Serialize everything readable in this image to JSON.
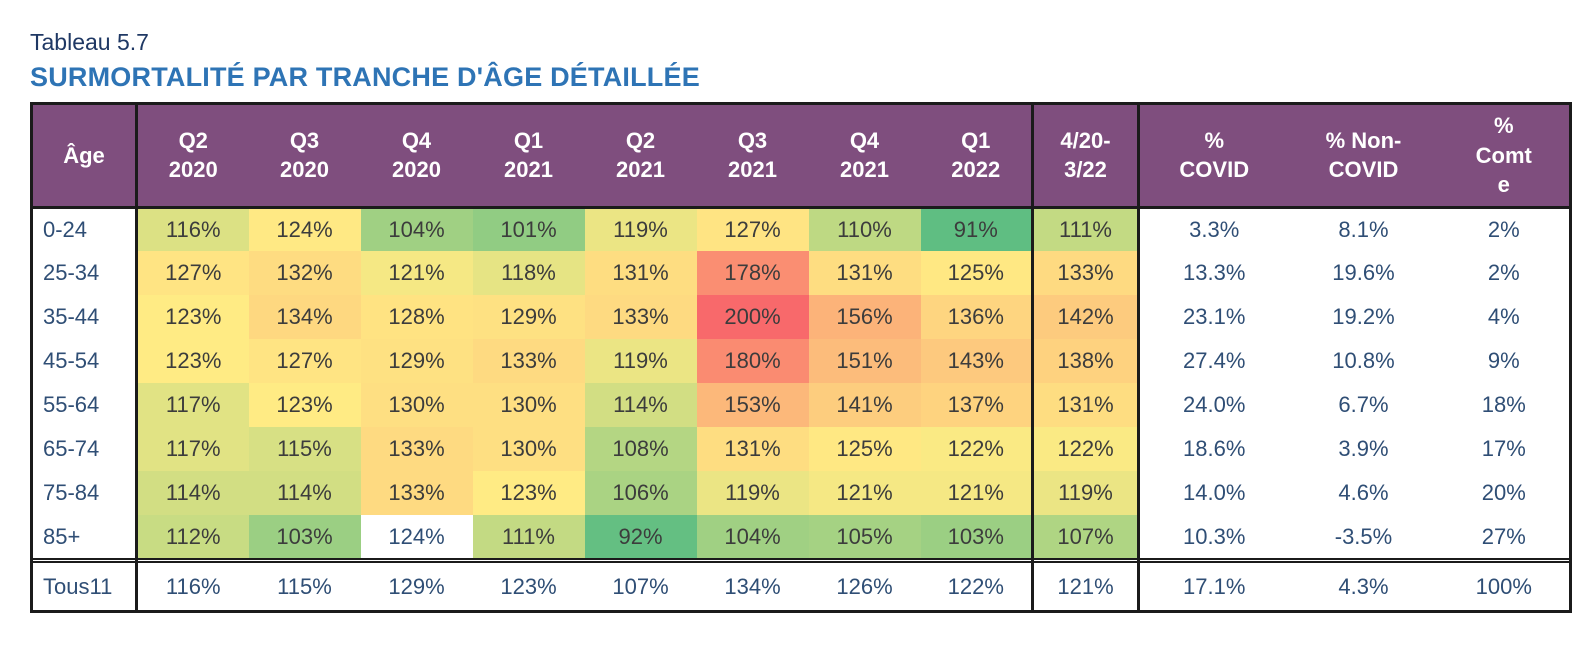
{
  "page": {
    "label": "Tableau 5.7",
    "title": "SURMORTALITÉ PAR TRANCHE D'ÂGE DÉTAILLÉE"
  },
  "colors": {
    "header_bg": "#7F4E7E",
    "header_text": "#FFFFFF",
    "label_color": "#1F3864",
    "title_color": "#2E74B5",
    "row_text": "#2F4E75",
    "heat_text": "#3C3C3C",
    "border": "#1B1B1B"
  },
  "table": {
    "columns": [
      {
        "key": "age",
        "label": "Âge",
        "sep_right": true
      },
      {
        "key": "q2_2020",
        "label": "Q2\n2020"
      },
      {
        "key": "q3_2020",
        "label": "Q3\n2020"
      },
      {
        "key": "q4_2020",
        "label": "Q4\n2020"
      },
      {
        "key": "q1_2021",
        "label": "Q1\n2021"
      },
      {
        "key": "q2_2021",
        "label": "Q2\n2021"
      },
      {
        "key": "q3_2021",
        "label": "Q3\n2021"
      },
      {
        "key": "q4_2021",
        "label": "Q4\n2021"
      },
      {
        "key": "q1_2022",
        "label": "Q1\n2022",
        "sep_right": true
      },
      {
        "key": "cumul",
        "label": "4/20-\n3/22",
        "sep_right": true
      },
      {
        "key": "pct_covid",
        "label": "%\nCOVID"
      },
      {
        "key": "pct_non_covid",
        "label": "% Non-\nCOVID"
      },
      {
        "key": "pct_comte",
        "label": "%\nComt\ne"
      }
    ],
    "rows": [
      {
        "label": "0-24",
        "values": [
          116,
          124,
          104,
          101,
          119,
          127,
          110,
          91
        ],
        "cumul": 111,
        "pct_covid": "3.3%",
        "pct_non_covid": "8.1%",
        "pct_comte": "2%"
      },
      {
        "label": "25-34",
        "values": [
          127,
          132,
          121,
          118,
          131,
          178,
          131,
          125
        ],
        "cumul": 133,
        "pct_covid": "13.3%",
        "pct_non_covid": "19.6%",
        "pct_comte": "2%"
      },
      {
        "label": "35-44",
        "values": [
          123,
          134,
          128,
          129,
          133,
          200,
          156,
          136
        ],
        "cumul": 142,
        "pct_covid": "23.1%",
        "pct_non_covid": "19.2%",
        "pct_comte": "4%"
      },
      {
        "label": "45-54",
        "values": [
          123,
          127,
          129,
          133,
          119,
          180,
          151,
          143
        ],
        "cumul": 138,
        "pct_covid": "27.4%",
        "pct_non_covid": "10.8%",
        "pct_comte": "9%"
      },
      {
        "label": "55-64",
        "values": [
          117,
          123,
          130,
          130,
          114,
          153,
          141,
          137
        ],
        "cumul": 131,
        "pct_covid": "24.0%",
        "pct_non_covid": "6.7%",
        "pct_comte": "18%"
      },
      {
        "label": "65-74",
        "values": [
          117,
          115,
          133,
          130,
          108,
          131,
          125,
          122
        ],
        "cumul": 122,
        "pct_covid": "18.6%",
        "pct_non_covid": "3.9%",
        "pct_comte": "17%"
      },
      {
        "label": "75-84",
        "values": [
          114,
          114,
          133,
          123,
          106,
          119,
          121,
          121
        ],
        "cumul": 119,
        "pct_covid": "14.0%",
        "pct_non_covid": "4.6%",
        "pct_comte": "20%"
      },
      {
        "label": "85+",
        "values": [
          112,
          103,
          124,
          111,
          92,
          104,
          105,
          103
        ],
        "cumul": 107,
        "pct_covid": "10.3%",
        "pct_non_covid": "-3.5%",
        "pct_comte": "27%",
        "plain_cols": [
          2
        ]
      }
    ],
    "total_row": {
      "label": "Tous11",
      "values": [
        116,
        115,
        129,
        123,
        107,
        134,
        126,
        122
      ],
      "cumul": 121,
      "pct_covid": "17.1%",
      "pct_non_covid": "4.3%",
      "pct_comte": "100%"
    },
    "heatmap_scale": {
      "min_value": 91,
      "min_color": "#5FBE82",
      "mid_value": 123,
      "mid_color": "#FFEB84",
      "max_value": 200,
      "max_color": "#F8696B"
    },
    "value_suffix": "%"
  }
}
